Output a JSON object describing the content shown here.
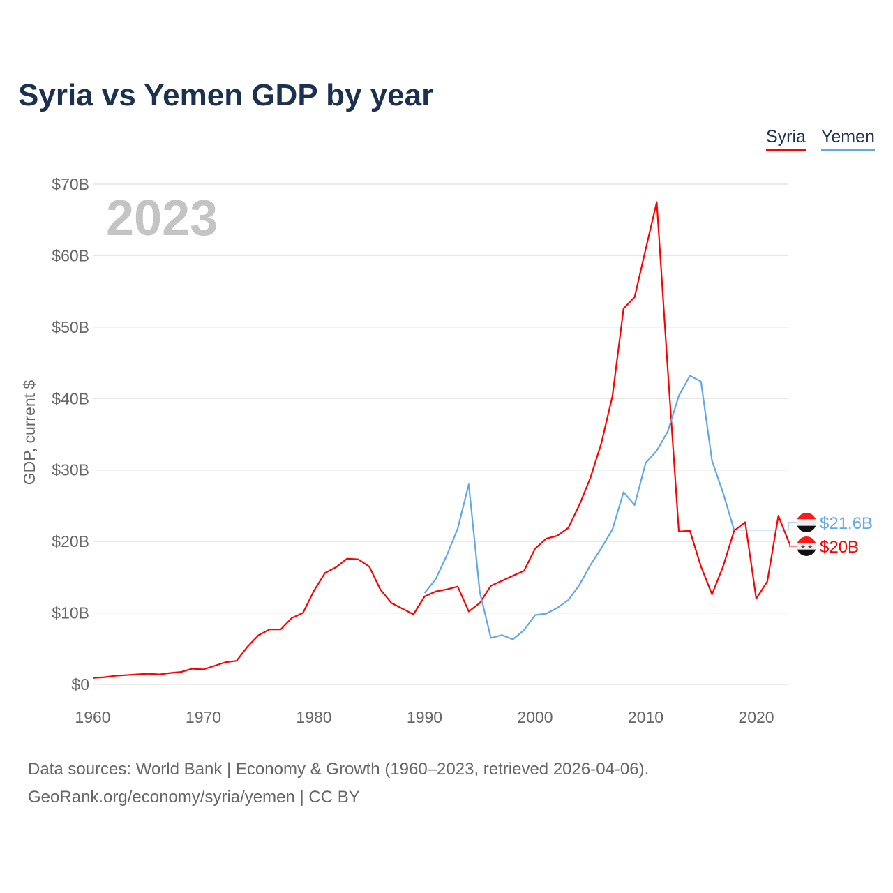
{
  "title": "Syria vs Yemen GDP by year",
  "legend": [
    {
      "label": "Syria",
      "color": "#ff0000"
    },
    {
      "label": "Yemen",
      "color": "#62a8e5"
    }
  ],
  "source_lines": [
    "Data sources: World Bank | Economy & Growth (1960–2023, retrieved 2026-04-06).",
    "GeoRank.org/economy/syria/yemen | CC BY"
  ],
  "chart_data": {
    "type": "line",
    "title": "Syria vs Yemen GDP by year",
    "year_watermark": "2023",
    "xlabel": "",
    "ylabel": "GDP, current $",
    "xlim": [
      1960,
      2023
    ],
    "ylim": [
      0,
      70
    ],
    "unit": "billion USD",
    "grid": true,
    "legend_position": "top-right",
    "x_ticks": [
      1960,
      1970,
      1980,
      1990,
      2000,
      2010,
      2020
    ],
    "x_tick_labels": [
      "1960",
      "1970",
      "1980",
      "1990",
      "2000",
      "2010",
      "2020"
    ],
    "y_ticks": [
      0,
      10,
      20,
      30,
      40,
      50,
      60,
      70
    ],
    "y_tick_labels": [
      "$0",
      "$10B",
      "$20B",
      "$30B",
      "$40B",
      "$50B",
      "$60B",
      "$70B"
    ],
    "series": [
      {
        "name": "Syria",
        "color": "#ff0000",
        "start_year": 1960,
        "end_label": "$20B",
        "values": [
          0.9,
          1.0,
          1.2,
          1.3,
          1.4,
          1.5,
          1.4,
          1.6,
          1.75,
          2.2,
          2.1,
          2.6,
          3.1,
          3.3,
          5.3,
          6.9,
          7.7,
          7.7,
          9.3,
          10.0,
          13.1,
          15.6,
          16.4,
          17.6,
          17.5,
          16.5,
          13.3,
          11.4,
          10.6,
          9.8,
          12.3,
          13.0,
          13.3,
          13.7,
          10.2,
          11.4,
          13.8,
          14.5,
          15.2,
          15.9,
          19.0,
          20.4,
          20.8,
          21.9,
          25.1,
          28.9,
          33.8,
          40.4,
          52.6,
          54.2,
          60.9,
          67.5,
          44.0,
          21.4,
          21.5,
          16.5,
          12.6,
          16.5,
          21.5,
          22.7,
          12.0,
          14.4,
          23.6,
          19.7
        ]
      },
      {
        "name": "Yemen",
        "color": "#62a8e5",
        "start_year": 1990,
        "end_label": "$21.6B",
        "values": [
          12.8,
          14.7,
          18.0,
          21.8,
          28.0,
          12.9,
          6.5,
          6.9,
          6.3,
          7.6,
          9.7,
          9.9,
          10.7,
          11.8,
          13.9,
          16.7,
          19.1,
          21.7,
          26.9,
          25.1,
          31.0,
          32.7,
          35.4,
          40.4,
          43.2,
          42.4,
          31.3,
          26.8,
          21.6
        ]
      }
    ]
  }
}
